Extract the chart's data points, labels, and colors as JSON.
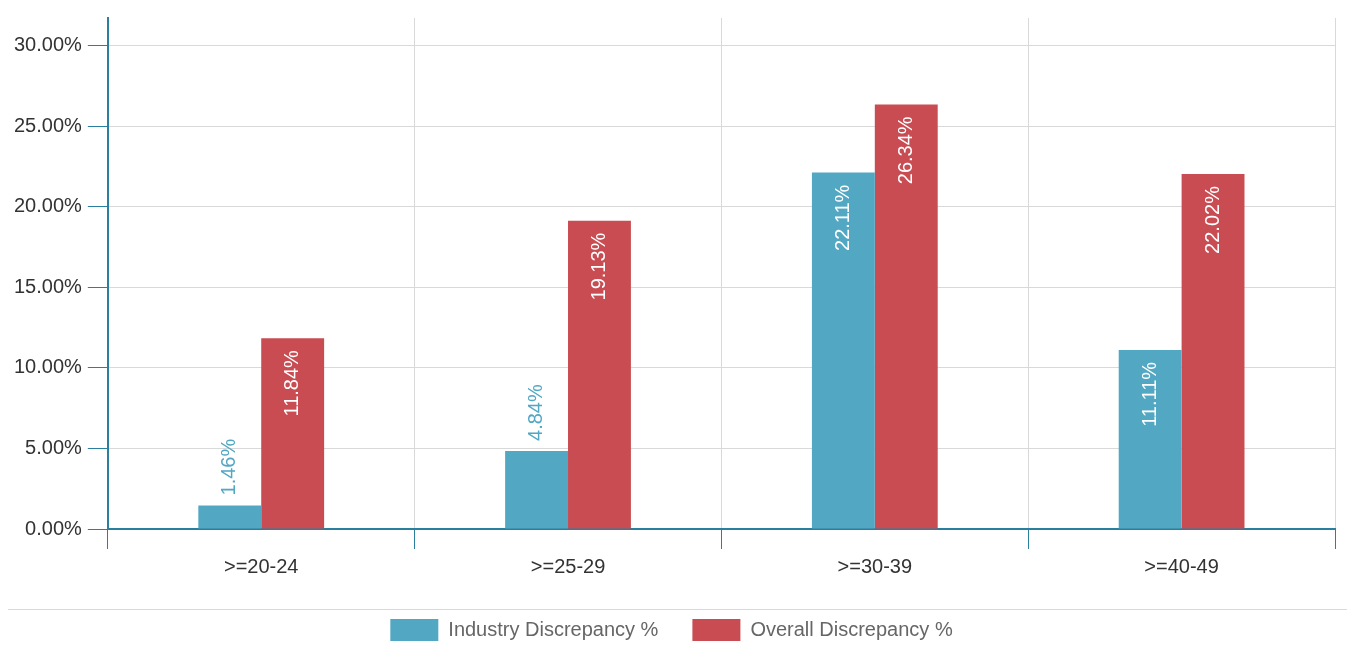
{
  "chart_data": {
    "type": "bar",
    "categories": [
      ">=20-24",
      ">=25-29",
      ">=30-39",
      ">=40-49"
    ],
    "series": [
      {
        "name": "Industry Discrepancy %",
        "color": "#52a7c3",
        "values": [
          1.46,
          4.84,
          22.11,
          11.11
        ],
        "value_labels": [
          "1.46%",
          "4.84%",
          "22.11%",
          "11.11%"
        ]
      },
      {
        "name": "Overall Discrepancy %",
        "color": "#c84c52",
        "values": [
          11.84,
          19.13,
          26.34,
          22.02
        ],
        "value_labels": [
          "11.84%",
          "19.13%",
          "26.34%",
          "22.02%"
        ]
      }
    ],
    "ylim": [
      0,
      31.7
    ],
    "yticks": [
      {
        "value": 0,
        "label": "0.00%"
      },
      {
        "value": 5,
        "label": "5.00%"
      },
      {
        "value": 10,
        "label": "10.00%"
      },
      {
        "value": 15,
        "label": "15.00%"
      },
      {
        "value": 20,
        "label": "20.00%"
      },
      {
        "value": 25,
        "label": "25.00%"
      },
      {
        "value": 30,
        "label": "30.00%"
      }
    ],
    "grid": true,
    "legend": "bottom"
  }
}
